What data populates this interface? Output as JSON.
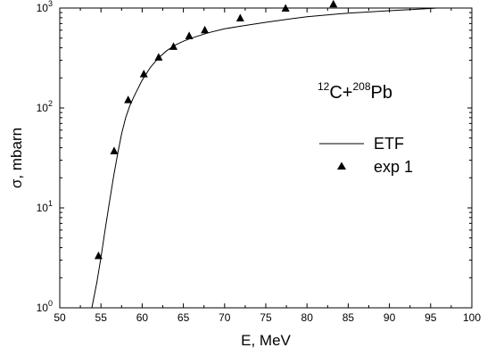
{
  "chart_data": {
    "type": "line",
    "title": "",
    "xlabel": "E, MeV",
    "ylabel": "σ, mbarn",
    "xlim": [
      50,
      100
    ],
    "ylim": [
      1,
      1000
    ],
    "yscale": "log",
    "x_ticks": [
      "50",
      "55",
      "60",
      "65",
      "70",
      "75",
      "80",
      "85",
      "90",
      "95",
      "100"
    ],
    "y_ticks": [
      {
        "base": "10",
        "exp": "0"
      },
      {
        "base": "10",
        "exp": "1"
      },
      {
        "base": "10",
        "exp": "2"
      },
      {
        "base": "10",
        "exp": "3"
      }
    ],
    "annotation": {
      "pre_sup": "12",
      "pre": "C+",
      "mid_sup": "208",
      "post": "Pb"
    },
    "legend_position": "right",
    "series": [
      {
        "name": "ETF",
        "style": "line",
        "x": [
          53.9,
          54.5,
          55.0,
          55.5,
          56.0,
          56.5,
          57.0,
          57.5,
          58.0,
          58.5,
          59.0,
          60.0,
          61.0,
          62.0,
          63.0,
          64.0,
          65.0,
          66.0,
          68.0,
          70.0,
          72.0,
          75.0,
          78.0,
          80.0,
          85.0,
          90.0,
          95.0,
          100.0
        ],
        "y": [
          1.0,
          1.8,
          3.2,
          6.0,
          11,
          20,
          34,
          55,
          80,
          105,
          130,
          190,
          255,
          318,
          375,
          425,
          465,
          500,
          565,
          620,
          660,
          720,
          780,
          820,
          890,
          940,
          990,
          1060
        ]
      },
      {
        "name": "exp 1",
        "style": "scatter",
        "x": [
          54.7,
          56.6,
          58.3,
          60.2,
          62.0,
          63.8,
          65.7,
          67.6,
          71.9,
          77.4,
          83.2
        ],
        "y": [
          3.3,
          37,
          120,
          218,
          320,
          410,
          525,
          600,
          790,
          990,
          1090
        ]
      }
    ]
  }
}
